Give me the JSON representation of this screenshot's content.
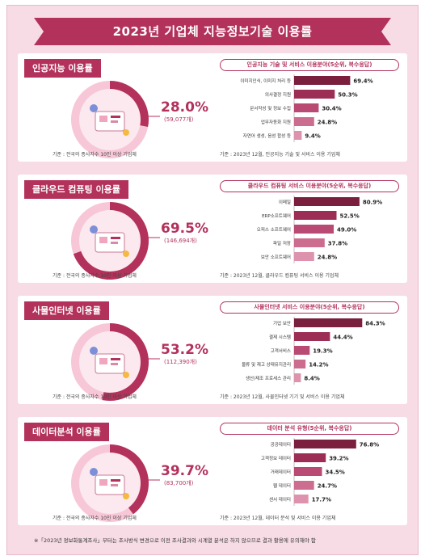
{
  "title": "2023년 기업체 지능정보기술 이용률",
  "footnote": "※「2023년 정보화통계조사」부터는 조사방식 변경으로 이전 조사결과와 시계열 분석은 하지 않으므로 결과 활용에 유의해야 함",
  "colors": {
    "primary": "#b3325c",
    "light": "#f7c7d7",
    "pale": "#fbe3ec"
  },
  "sections": [
    {
      "title": "인공지능 이용률",
      "percent": "28.0%",
      "count": "(59,077개)",
      "share": 28.0,
      "caption": "기준 : 전국의 종사자수 10인 이상 기업체",
      "icon": "ai-robot-icon",
      "chart_title": "인공지능 기술 및 서비스 이용분야(5순위, 복수응답)",
      "source": "기준 : 2023년 12월, 인공지능 기술 및 서비스 이용 기업체"
    },
    {
      "title": "클라우드 컴퓨팅 이용률",
      "percent": "69.5%",
      "count": "(146,694개)",
      "share": 69.5,
      "caption": "기준 : 전국의 종사자수 10인 이상 기업체",
      "icon": "cloud-icon",
      "chart_title": "클라우드 컴퓨팅 서비스 이용분야(5순위, 복수응답)",
      "source": "기준 : 2023년 12월, 클라우드 컴퓨팅 서비스 이용 기업체"
    },
    {
      "title": "사물인터넷 이용률",
      "percent": "53.2%",
      "count": "(112,390개)",
      "share": 53.2,
      "caption": "기준 : 전국의 종사자수 10인 이상 기업체",
      "icon": "iot-icon",
      "chart_title": "사물인터넷 서비스 이용분야(5순위, 복수응답)",
      "source": "기준 : 2023년 12월, 사물인터넷 기기 및 서비스 이용 기업체"
    },
    {
      "title": "데이터분석 이용률",
      "percent": "39.7%",
      "count": "(83,700개)",
      "share": 39.7,
      "caption": "기준 : 전국의 종사자수 10인 이상 기업체",
      "icon": "data-analysis-icon",
      "chart_title": "데이터 분석 유형(5순위, 복수응답)",
      "source": "기준 : 2023년 12월, 데이터 분석 및 서비스 이용 기업체"
    }
  ],
  "chart_data": [
    {
      "type": "bar",
      "orientation": "horizontal",
      "categories": [
        "이미지인식, 이미지 처리 등",
        "의사결정 지원",
        "문서작성 및 정보 수집",
        "업무자동화 지원",
        "자연어 생성, 음성 합성 등"
      ],
      "values": [
        69.4,
        50.3,
        30.4,
        24.8,
        9.4
      ],
      "value_labels": [
        "69.4%",
        "50.3%",
        "30.4%",
        "24.8%",
        "9.4%"
      ],
      "xlim": [
        0,
        100
      ]
    },
    {
      "type": "bar",
      "orientation": "horizontal",
      "categories": [
        "이메일",
        "ERP소프트웨어",
        "오피스 소프트웨어",
        "파일 저장",
        "보안 소프트웨어"
      ],
      "values": [
        80.9,
        52.5,
        49.0,
        37.8,
        24.8
      ],
      "value_labels": [
        "80.9%",
        "52.5%",
        "49.0%",
        "37.8%",
        "24.8%"
      ],
      "xlim": [
        0,
        100
      ]
    },
    {
      "type": "bar",
      "orientation": "horizontal",
      "categories": [
        "기업 보안",
        "결제 시스템",
        "고객서비스",
        "물류 및 재고 상태유지관리",
        "생산/제조 프로세스 관리"
      ],
      "values": [
        84.3,
        44.4,
        19.3,
        14.2,
        8.4
      ],
      "value_labels": [
        "84.3%",
        "44.4%",
        "19.3%",
        "14.2%",
        "8.4%"
      ],
      "xlim": [
        0,
        100
      ]
    },
    {
      "type": "bar",
      "orientation": "horizontal",
      "categories": [
        "공공데이터",
        "고객정보 데이터",
        "거래데이터",
        "웹 데이터",
        "센서 데이터"
      ],
      "values": [
        76.8,
        39.2,
        34.5,
        24.7,
        17.7
      ],
      "value_labels": [
        "76.8%",
        "39.2%",
        "34.5%",
        "24.7%",
        "17.7%"
      ],
      "xlim": [
        0,
        100
      ]
    }
  ]
}
